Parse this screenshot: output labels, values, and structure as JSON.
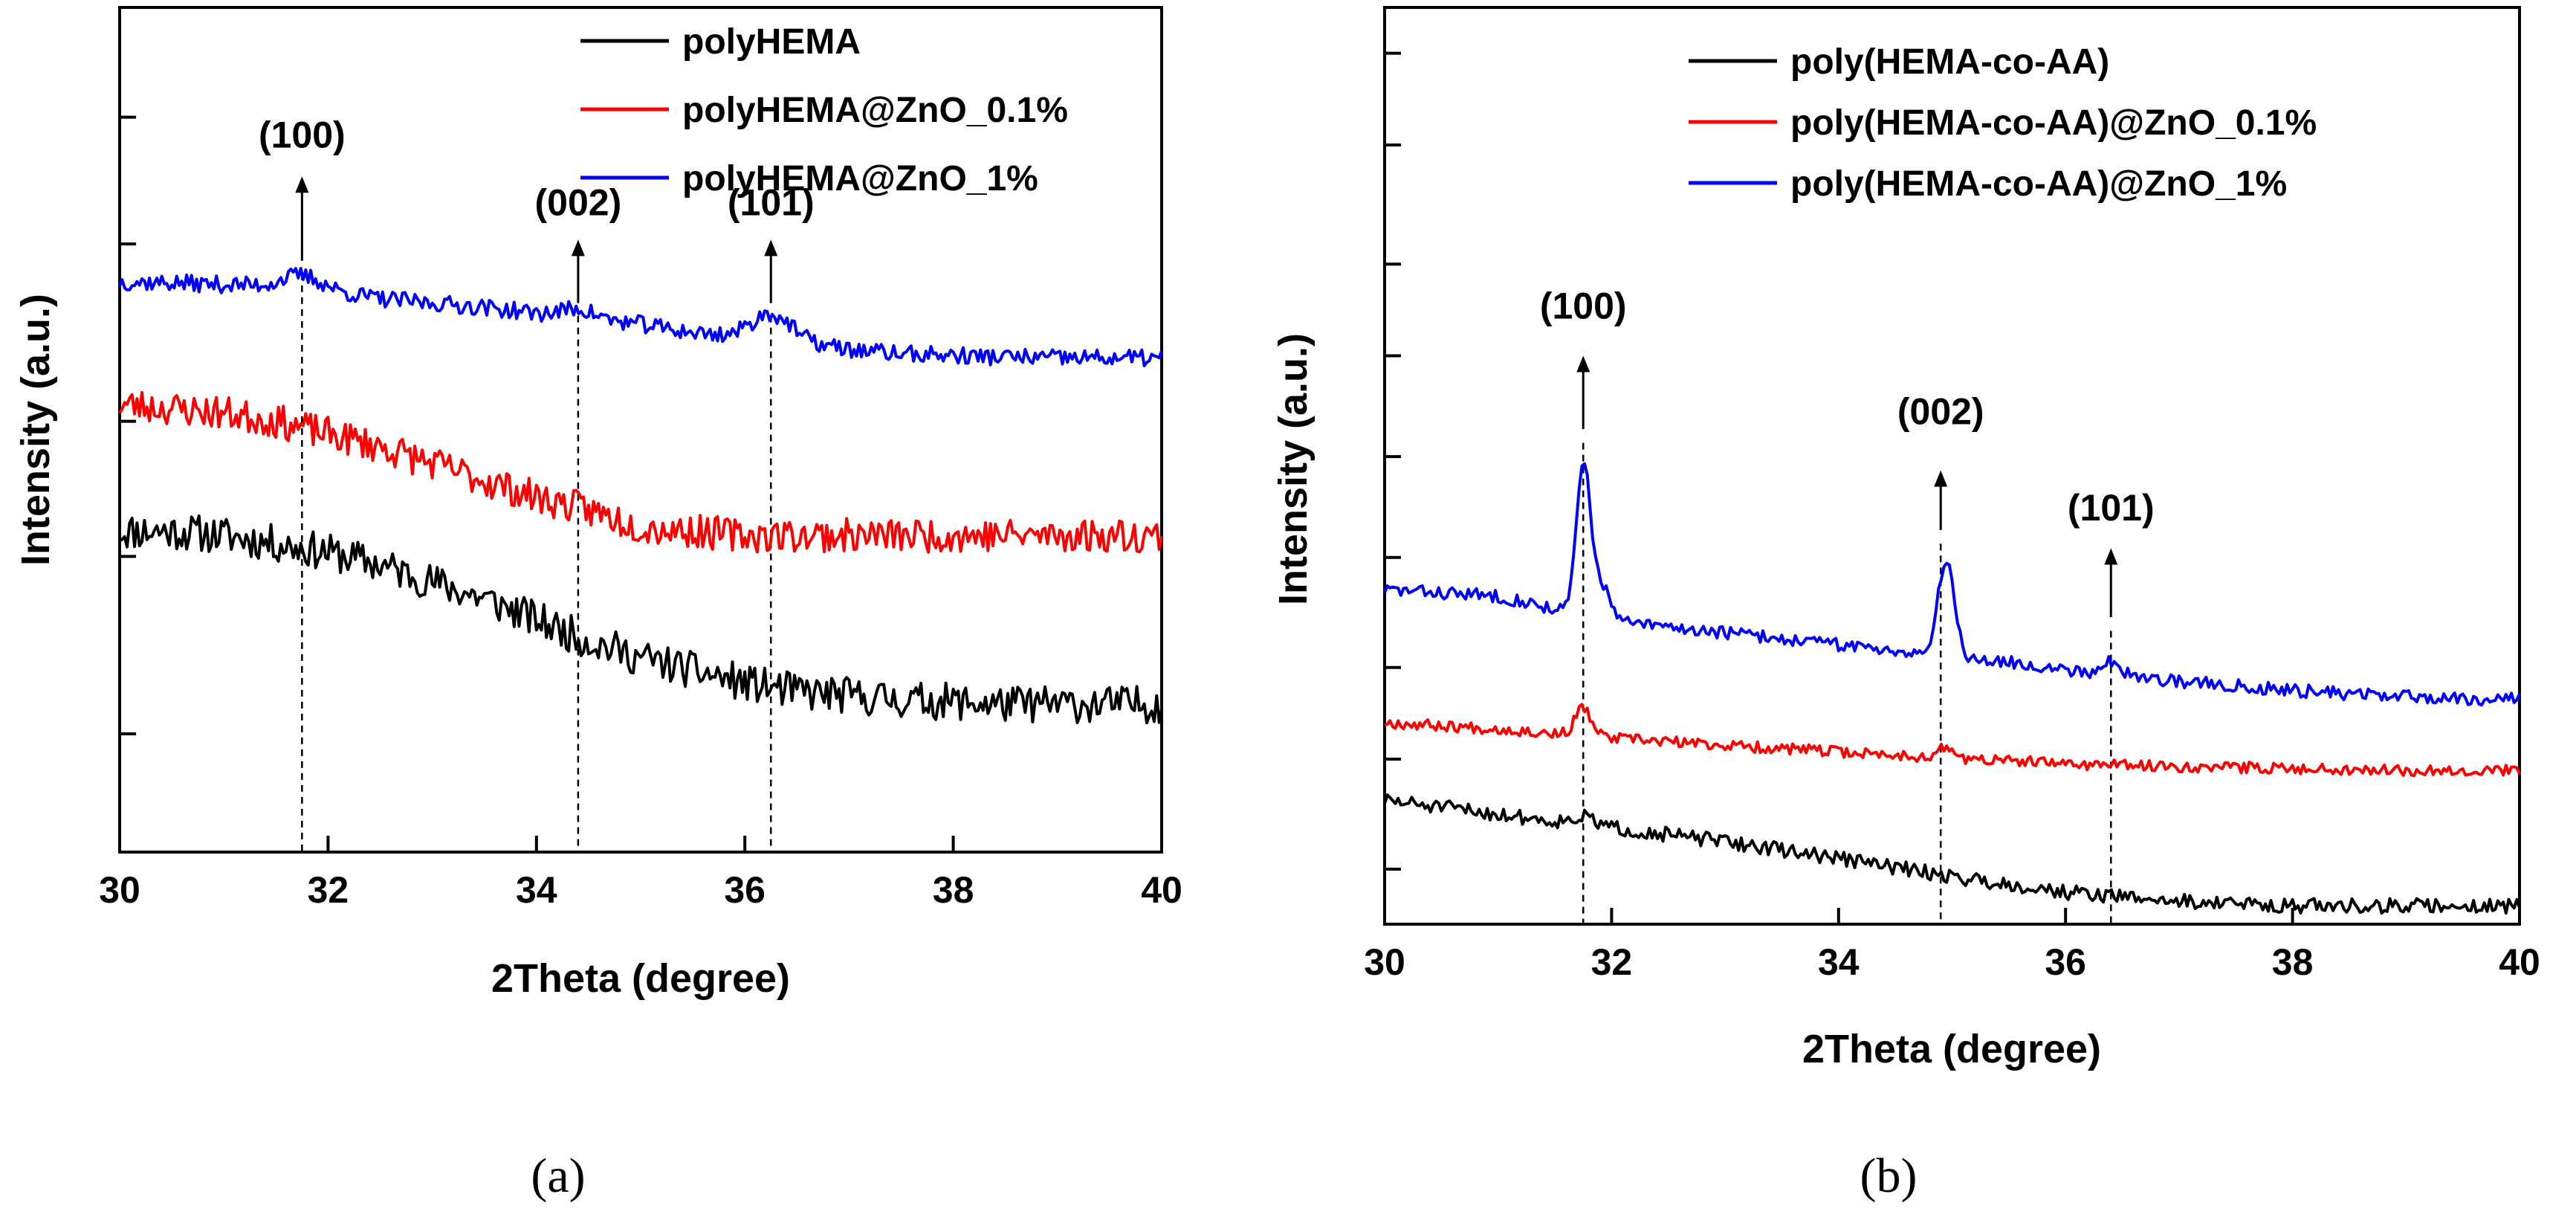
{
  "figure": {
    "panels": [
      "(a)",
      "(b)"
    ]
  },
  "chart_data": [
    {
      "type": "line",
      "panel": "(a)",
      "title": "",
      "xlabel": "2Theta (degree)",
      "ylabel": "Intensity (a.u.)",
      "xlim": [
        30,
        40
      ],
      "ylim": [
        0,
        100
      ],
      "xticks": [
        30,
        32,
        34,
        36,
        38,
        40
      ],
      "xtick_labels": [
        "30",
        "32",
        "34",
        "36",
        "38",
        "40"
      ],
      "yticks": [
        14,
        35,
        51,
        72,
        87
      ],
      "legend_position": "top-right",
      "series": [
        {
          "name": "polyHEMA",
          "color": "#000000",
          "noise": 2.2,
          "seed": 11,
          "x": [
            30,
            30.5,
            31,
            31.5,
            32,
            32.5,
            33,
            33.5,
            34,
            34.5,
            35,
            35.5,
            36,
            36.5,
            37,
            37.5,
            38,
            38.5,
            39,
            39.5,
            40
          ],
          "y": [
            38,
            38,
            37.5,
            36.5,
            35.5,
            34,
            32,
            30,
            27.5,
            25,
            23,
            21.5,
            20,
            19,
            18.5,
            18,
            17.8,
            17.5,
            17.5,
            17.5,
            17.5
          ]
        },
        {
          "name": "polyHEMA@ZnO_0.1%",
          "color": "#ff0000",
          "noise": 2.0,
          "seed": 23,
          "x": [
            30,
            30.5,
            31,
            31.5,
            32,
            32.5,
            33,
            33.5,
            34,
            34.5,
            35,
            35.5,
            36,
            36.5,
            37,
            37.5,
            38,
            38.5,
            39,
            39.5,
            40
          ],
          "y": [
            53,
            52.5,
            52,
            51,
            49.5,
            48,
            46,
            44,
            42,
            40.5,
            38.5,
            38,
            37.5,
            37.5,
            37.5,
            37.5,
            37.5,
            37.5,
            37.5,
            37.5,
            37.5
          ]
        },
        {
          "name": "polyHEMA@ZnO_1%",
          "color": "#0000ff",
          "noise": 1.0,
          "seed": 37,
          "x": [
            30,
            30.5,
            31,
            31.5,
            32,
            32.5,
            33,
            33.5,
            34,
            34.5,
            35,
            35.5,
            36,
            36.5,
            37,
            37.5,
            38,
            38.5,
            39,
            39.5,
            40
          ],
          "y": [
            67.5,
            67.4,
            67.2,
            67,
            66.5,
            65.5,
            65,
            64.5,
            63.8,
            63.2,
            62.5,
            61.5,
            61,
            60.5,
            59.5,
            59,
            58.8,
            58.6,
            58.5,
            58.5,
            58.5
          ],
          "peaks": [
            {
              "x": 31.75,
              "h": 1.5,
              "w": 0.18
            },
            {
              "x": 34.4,
              "h": 1.0,
              "w": 0.15
            },
            {
              "x": 36.25,
              "h": 3.0,
              "w": 0.18
            }
          ]
        }
      ],
      "annotations": [
        {
          "label": "(100)",
          "x": 31.75,
          "arrow_from": 70,
          "arrow_to": 80,
          "text_y": 85
        },
        {
          "label": "(002)",
          "x": 34.4,
          "arrow_from": 65,
          "arrow_to": 72.5,
          "text_y": 77
        },
        {
          "label": "(101)",
          "x": 36.25,
          "arrow_from": 65,
          "arrow_to": 72.5,
          "text_y": 77
        }
      ]
    },
    {
      "type": "line",
      "panel": "(b)",
      "title": "",
      "xlabel": "2Theta (degree)",
      "ylabel": "Intensity (a.u.)",
      "xlim": [
        30,
        40
      ],
      "ylim": [
        0,
        100
      ],
      "xticks": [
        30,
        32,
        34,
        36,
        38,
        40
      ],
      "xtick_labels": [
        "30",
        "32",
        "34",
        "36",
        "38",
        "40"
      ],
      "yticks": [
        6,
        18,
        28,
        40,
        51,
        62,
        72,
        85,
        95
      ],
      "legend_position": "top-right",
      "series": [
        {
          "name": "poly(HEMA-co-AA)",
          "color": "#000000",
          "noise": 0.8,
          "seed": 51,
          "x": [
            30,
            31,
            32,
            33,
            34,
            35,
            36,
            37,
            38,
            39,
            40
          ],
          "y": [
            13.5,
            12,
            10.5,
            9,
            7.2,
            5.2,
            3.5,
            2.5,
            2,
            2,
            2
          ],
          "peaks": [
            {
              "x": 31.75,
              "h": 0.8,
              "w": 0.1
            }
          ]
        },
        {
          "name": "poly(HEMA-co-AA)@ZnO_0.1%",
          "color": "#ff0000",
          "noise": 0.6,
          "seed": 67,
          "x": [
            30,
            31,
            32,
            33,
            34,
            35,
            36,
            37,
            38,
            39,
            40
          ],
          "y": [
            22,
            21.3,
            20.3,
            19.5,
            18.8,
            18.1,
            17.5,
            17.2,
            17,
            16.8,
            16.8
          ],
          "peaks": [
            {
              "x": 31.75,
              "h": 3.0,
              "w": 0.07
            },
            {
              "x": 34.95,
              "h": 1.2,
              "w": 0.06
            }
          ]
        },
        {
          "name": "poly(HEMA-co-AA)@ZnO_1%",
          "color": "#0000ff",
          "noise": 0.7,
          "seed": 83,
          "x": [
            30,
            31,
            32,
            33,
            34,
            35,
            36,
            37,
            38,
            39,
            40
          ],
          "y": [
            36.5,
            35.8,
            33,
            31.8,
            30.5,
            29.3,
            27.8,
            26.5,
            25.5,
            24.8,
            24.5
          ],
          "peaks": [
            {
              "x": 31.75,
              "h": 16,
              "w": 0.06
            },
            {
              "x": 31.9,
              "h": 4,
              "w": 0.08
            },
            {
              "x": 34.95,
              "h": 10.5,
              "w": 0.07
            },
            {
              "x": 36.4,
              "h": 1.5,
              "w": 0.07
            }
          ]
        }
      ],
      "annotations": [
        {
          "label": "(100)",
          "x": 31.75,
          "arrow_from": 54,
          "arrow_to": 62,
          "text_y": 67.5
        },
        {
          "label": "(002)",
          "x": 34.9,
          "arrow_from": 43,
          "arrow_to": 49.5,
          "text_y": 56
        },
        {
          "label": "(101)",
          "x": 36.4,
          "arrow_from": 33.5,
          "arrow_to": 41,
          "text_y": 45.5
        }
      ]
    }
  ]
}
